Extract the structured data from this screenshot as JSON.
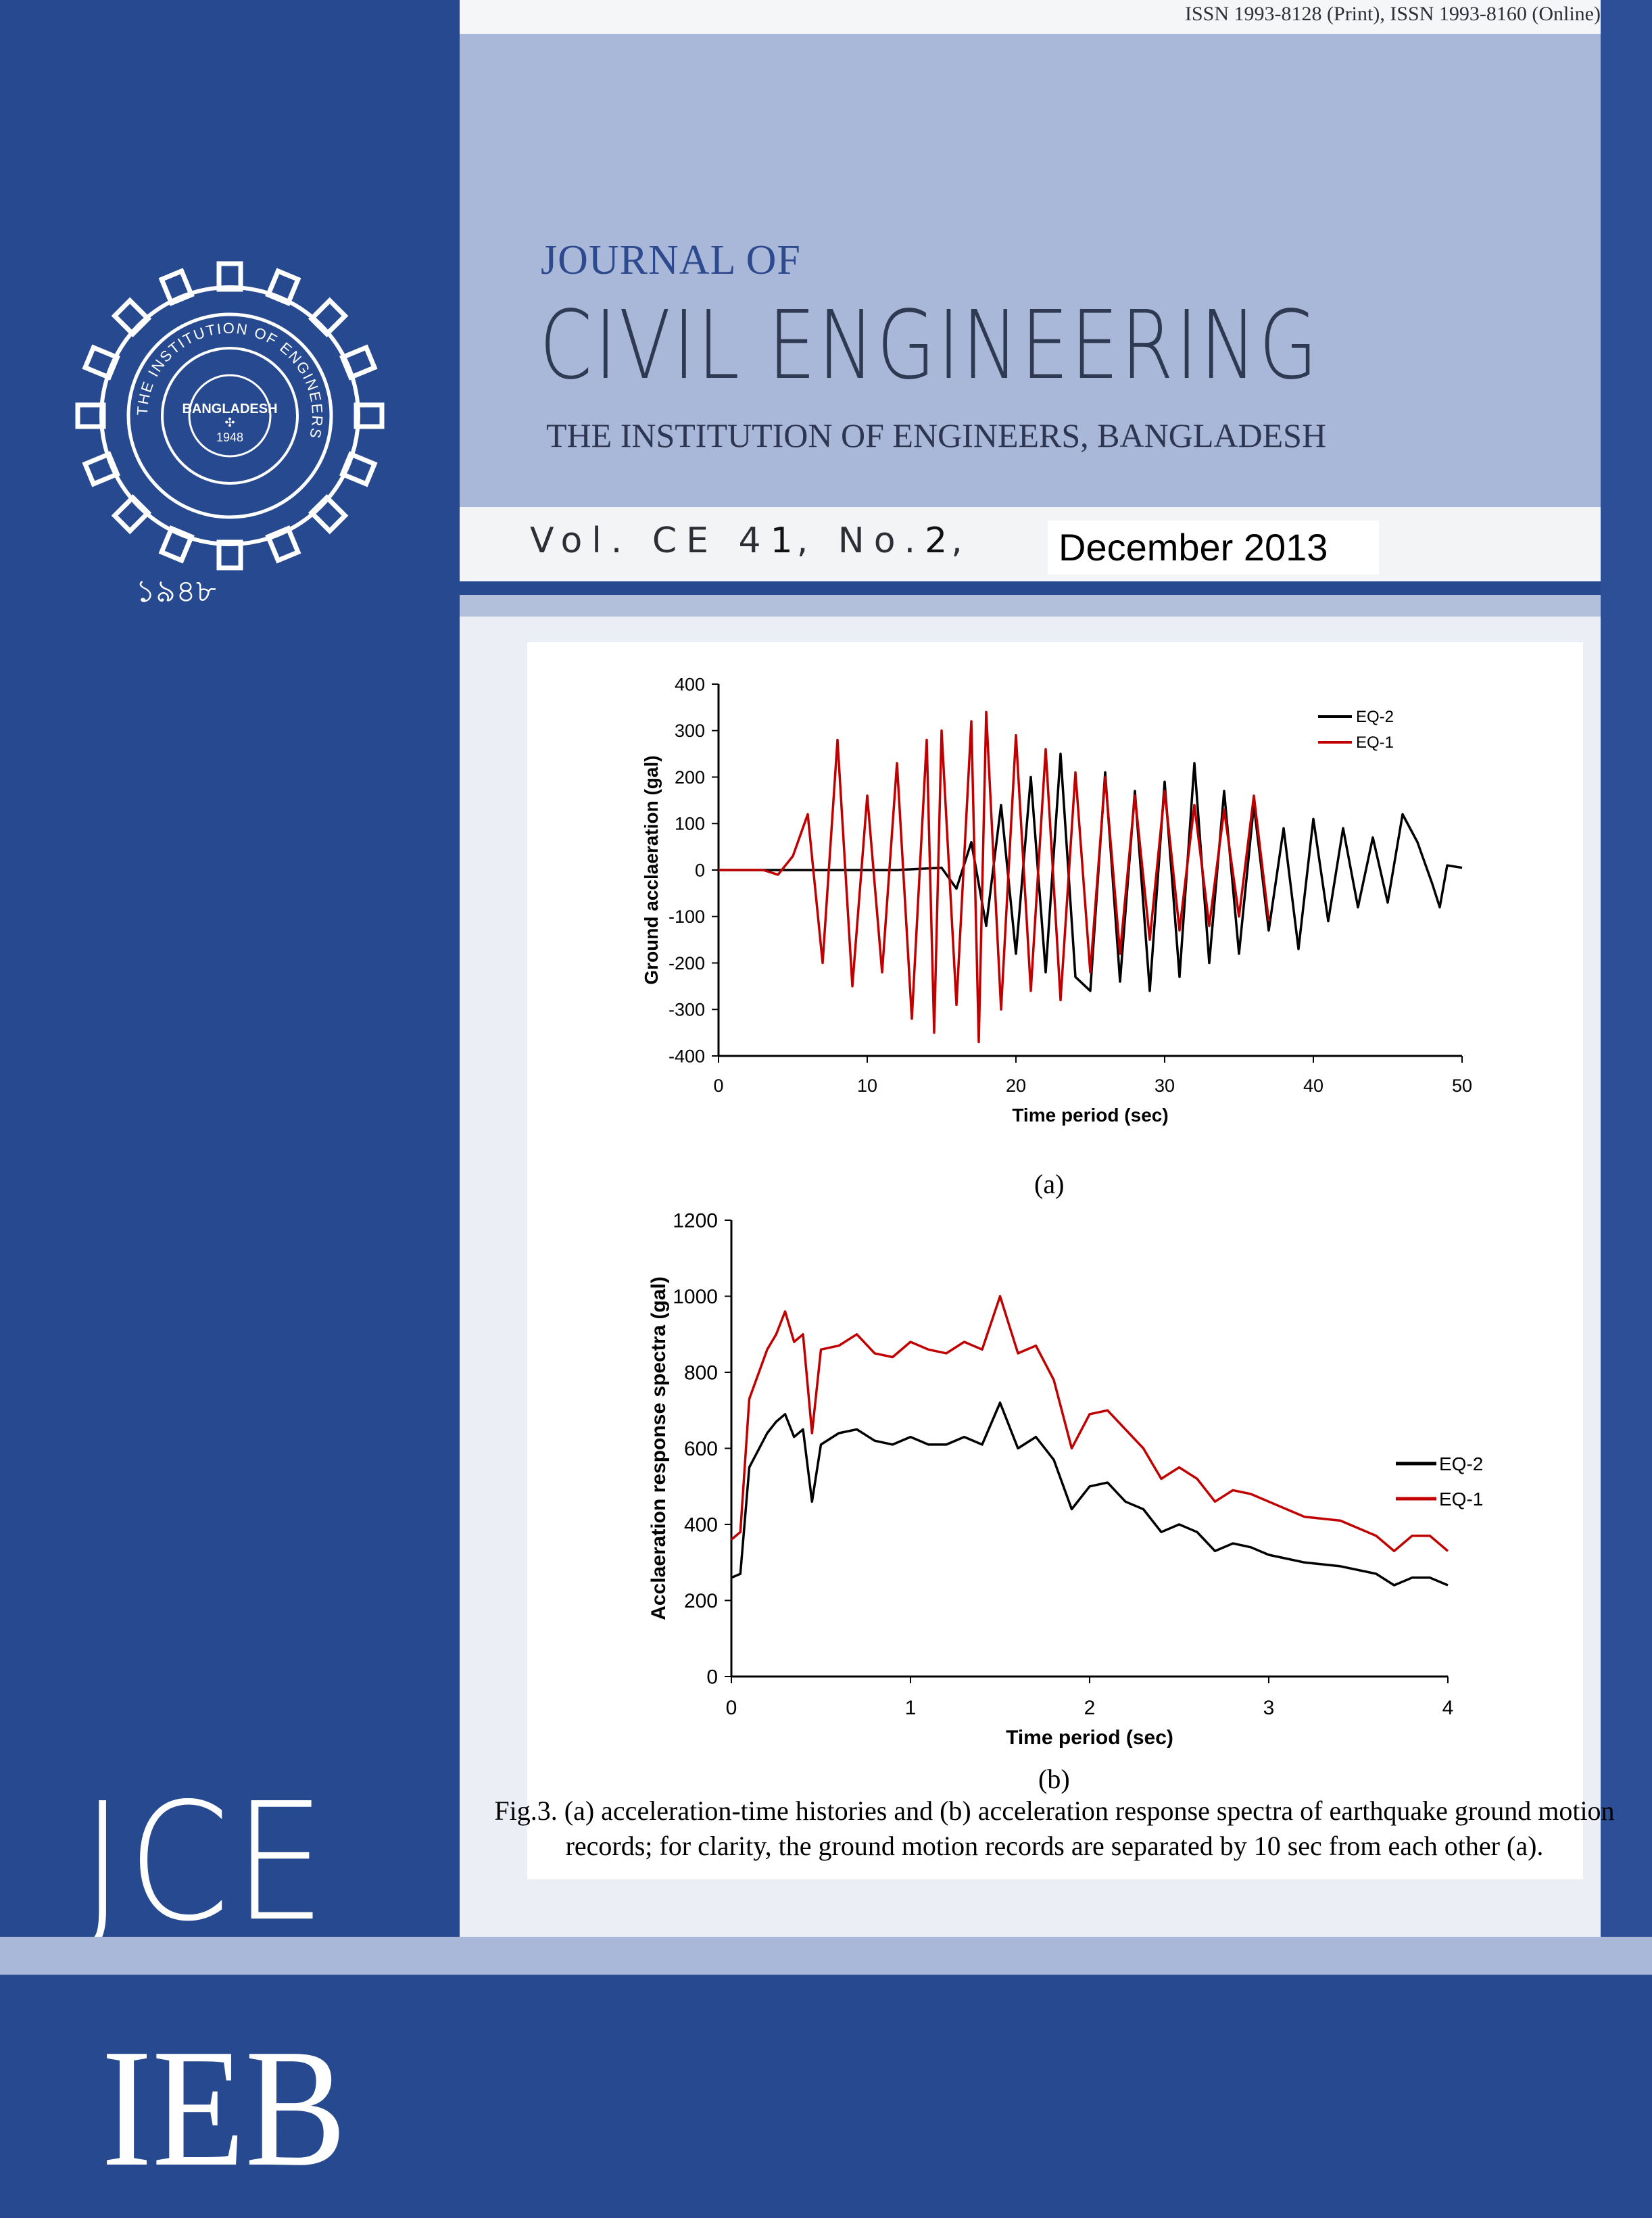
{
  "header": {
    "issn": "ISSN 1993-8128 (Print), ISSN 1993-8160 (Online)",
    "journal_of": "JOURNAL OF",
    "title": "CIVIL ENGINEERING",
    "institution": "THE INSTITUTION OF ENGINEERS, BANGLADESH"
  },
  "issue": {
    "vol_prefix": "Vol. CE 4",
    "vol_digit": "1",
    "sep1": ", No.",
    "no_digit": "2",
    "sep2": ",",
    "date": "December 2013"
  },
  "logo": {
    "text_inner": "THE INSTITUTION OF ENGINEERS",
    "text_center": "BANGLADESH",
    "year": "1948",
    "bottom_year_bn": "১৯৪৮"
  },
  "colors": {
    "navy": "#27498f",
    "panel": "#a9b8d8",
    "eq2": "#000000",
    "eq1": "#c00000"
  },
  "figure": {
    "caption_a": "(a)",
    "caption_b": "(b)",
    "caption": "Fig.3. (a) acceleration-time histories and (b) acceleration response spectra of earthquake ground motion records; for clarity, the ground motion records are separated by 10 sec from each other (a)."
  },
  "chart_data": [
    {
      "type": "line",
      "xlabel": "Time period (sec)",
      "ylabel": "Ground acclaeration (gal)",
      "xlim": [
        0,
        50
      ],
      "ylim": [
        -400,
        400
      ],
      "xticks": [
        0,
        10,
        20,
        30,
        40,
        50
      ],
      "yticks": [
        400,
        300,
        200,
        100,
        0,
        -100,
        -200,
        -300,
        -400
      ],
      "legend_position": "top-right",
      "series": [
        {
          "name": "EQ-2",
          "x": [
            0,
            10,
            12,
            15,
            16,
            17,
            18,
            19,
            20,
            21,
            22,
            23,
            24,
            25,
            26,
            27,
            28,
            29,
            30,
            31,
            32,
            33,
            34,
            35,
            36,
            37,
            38,
            39,
            40,
            41,
            42,
            43,
            44,
            45,
            46,
            47,
            48,
            48.5,
            49,
            50
          ],
          "y": [
            0,
            0,
            0,
            5,
            -40,
            60,
            -120,
            140,
            -180,
            200,
            -220,
            250,
            -230,
            -260,
            210,
            -240,
            170,
            -260,
            190,
            -230,
            230,
            -200,
            170,
            -180,
            140,
            -130,
            90,
            -170,
            110,
            -110,
            90,
            -80,
            70,
            -70,
            120,
            60,
            -30,
            -80,
            10,
            5
          ]
        },
        {
          "name": "EQ-1",
          "x": [
            0,
            3,
            4,
            5,
            6,
            7,
            8,
            9,
            10,
            11,
            12,
            13,
            14,
            14.5,
            15,
            16,
            17,
            17.5,
            18,
            19,
            20,
            21,
            22,
            23,
            24,
            25,
            26,
            27,
            28,
            29,
            30,
            31,
            32,
            33,
            34,
            35,
            36,
            37
          ],
          "y": [
            0,
            0,
            -10,
            30,
            120,
            -200,
            280,
            -250,
            160,
            -220,
            230,
            -320,
            280,
            -350,
            300,
            -290,
            320,
            -370,
            340,
            -300,
            290,
            -260,
            260,
            -280,
            210,
            -220,
            200,
            -180,
            160,
            -150,
            170,
            -130,
            140,
            -120,
            130,
            -100,
            160,
            -110
          ]
        }
      ]
    },
    {
      "type": "line",
      "xlabel": "Time period (sec)",
      "ylabel": "Acclaeration response spectra (gal)",
      "xlim": [
        0,
        4
      ],
      "ylim": [
        0,
        1200
      ],
      "xticks": [
        0,
        1,
        2,
        3,
        4
      ],
      "yticks": [
        0,
        200,
        400,
        600,
        800,
        1000,
        1200
      ],
      "legend_position": "right",
      "series": [
        {
          "name": "EQ-2",
          "x": [
            0,
            0.05,
            0.1,
            0.2,
            0.25,
            0.3,
            0.35,
            0.4,
            0.45,
            0.5,
            0.6,
            0.7,
            0.8,
            0.9,
            1.0,
            1.1,
            1.2,
            1.3,
            1.4,
            1.5,
            1.6,
            1.7,
            1.8,
            1.9,
            2.0,
            2.1,
            2.2,
            2.3,
            2.4,
            2.5,
            2.6,
            2.7,
            2.8,
            2.9,
            3.0,
            3.2,
            3.4,
            3.6,
            3.7,
            3.8,
            3.9,
            4.0
          ],
          "y": [
            260,
            270,
            550,
            640,
            670,
            690,
            630,
            650,
            460,
            610,
            640,
            650,
            620,
            610,
            630,
            610,
            610,
            630,
            610,
            720,
            600,
            630,
            570,
            440,
            500,
            510,
            460,
            440,
            380,
            400,
            380,
            330,
            350,
            340,
            320,
            300,
            290,
            270,
            240,
            260,
            260,
            240
          ]
        },
        {
          "name": "EQ-1",
          "x": [
            0,
            0.05,
            0.1,
            0.2,
            0.25,
            0.3,
            0.35,
            0.4,
            0.45,
            0.5,
            0.6,
            0.7,
            0.8,
            0.9,
            1.0,
            1.1,
            1.2,
            1.3,
            1.4,
            1.5,
            1.6,
            1.7,
            1.8,
            1.9,
            2.0,
            2.1,
            2.2,
            2.3,
            2.4,
            2.5,
            2.6,
            2.7,
            2.8,
            2.9,
            3.0,
            3.2,
            3.4,
            3.6,
            3.7,
            3.8,
            3.9,
            4.0
          ],
          "y": [
            360,
            380,
            730,
            860,
            900,
            960,
            880,
            900,
            640,
            860,
            870,
            900,
            850,
            840,
            880,
            860,
            850,
            880,
            860,
            1000,
            850,
            870,
            780,
            600,
            690,
            700,
            650,
            600,
            520,
            550,
            520,
            460,
            490,
            480,
            460,
            420,
            410,
            370,
            330,
            370,
            370,
            330
          ]
        }
      ]
    }
  ]
}
